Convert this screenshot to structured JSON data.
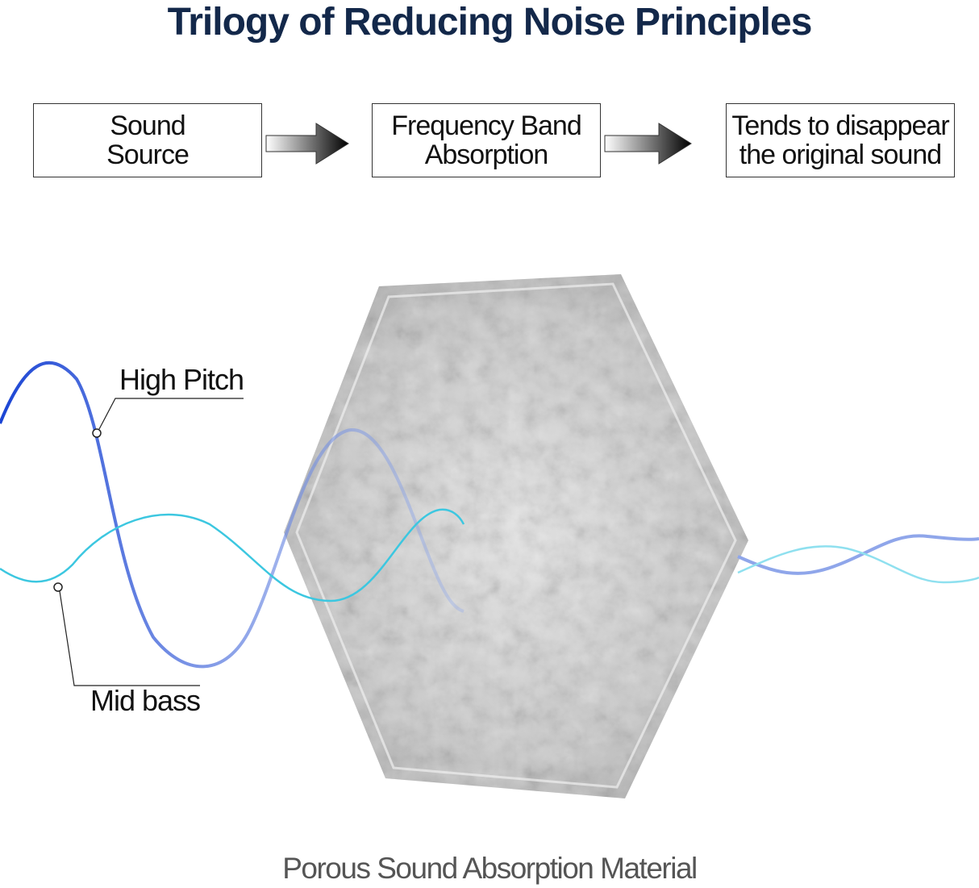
{
  "title": "Trilogy of Reducing Noise Principles",
  "steps": [
    {
      "line1": "Sound",
      "line2": "Source"
    },
    {
      "line1": "Frequency Band",
      "line2": "Absorption"
    },
    {
      "line1": "Tends to disappear",
      "line2": "the original sound"
    }
  ],
  "labels": {
    "high": "High Pitch",
    "mid": "Mid bass"
  },
  "caption": "Porous Sound Absorption Material",
  "colors": {
    "title": "#13284a",
    "high_wave": "#1a44d4",
    "mid_wave": "#3cc7e0",
    "panel": "#d8d8d8"
  }
}
